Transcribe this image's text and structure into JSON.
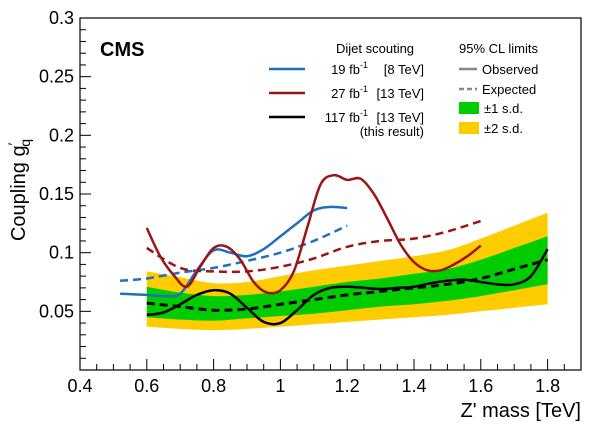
{
  "chart_data": {
    "type": "line",
    "experiment_label": "CMS",
    "xlabel": "Z' mass [TeV]",
    "ylabel_main": "Coupling g",
    "ylabel_sup": "′",
    "ylabel_sub": "q",
    "xlim": [
      0.4,
      1.9
    ],
    "ylim": [
      0.0,
      0.3
    ],
    "x_ticks": [
      0.4,
      0.6,
      0.8,
      1.0,
      1.2,
      1.4,
      1.6,
      1.8
    ],
    "x_tick_labels": [
      "0.4",
      "0.6",
      "0.8",
      "1",
      "1.2",
      "1.4",
      "1.6",
      "1.8"
    ],
    "y_ticks": [
      0.05,
      0.1,
      0.15,
      0.2,
      0.25,
      0.3
    ],
    "y_tick_labels": [
      "0.05",
      "0.1",
      "0.15",
      "0.2",
      "0.25",
      "0.3"
    ],
    "legend_left": {
      "header": "Dijet scouting",
      "entries": [
        {
          "lumi": "19 fb",
          "lumi_sup": "-1",
          "energy": "[8 TeV]",
          "color": "#1f6fc0"
        },
        {
          "lumi": "27 fb",
          "lumi_sup": "-1",
          "energy": "[13 TeV]",
          "color": "#9a1616"
        },
        {
          "lumi": "117 fb",
          "lumi_sup": "-1",
          "energy": "[13 TeV]",
          "color": "#000000"
        }
      ],
      "footer": "(this result)"
    },
    "legend_right": {
      "header": "95% CL limits",
      "entries": [
        {
          "label": "Observed",
          "kind": "solid-line",
          "color": "#888888"
        },
        {
          "label": "Expected",
          "kind": "dashed-line",
          "color": "#888888"
        },
        {
          "label": "±1 s.d.",
          "kind": "box",
          "color": "#00cc00"
        },
        {
          "label": "±2 s.d.",
          "kind": "box",
          "color": "#ffcc00"
        }
      ]
    },
    "series": [
      {
        "key": "band2",
        "kind": "band",
        "color": "#ffcc00",
        "x": [
          0.6,
          0.7,
          0.8,
          0.9,
          1.0,
          1.1,
          1.2,
          1.3,
          1.4,
          1.5,
          1.6,
          1.7,
          1.8
        ],
        "lo": [
          0.037,
          0.035,
          0.034,
          0.035,
          0.037,
          0.039,
          0.041,
          0.043,
          0.045,
          0.047,
          0.05,
          0.053,
          0.056
        ],
        "hi": [
          0.084,
          0.079,
          0.074,
          0.075,
          0.08,
          0.085,
          0.089,
          0.093,
          0.097,
          0.102,
          0.112,
          0.123,
          0.134
        ]
      },
      {
        "key": "band1",
        "kind": "band",
        "color": "#00cc00",
        "x": [
          0.6,
          0.7,
          0.8,
          0.9,
          1.0,
          1.1,
          1.2,
          1.3,
          1.4,
          1.5,
          1.6,
          1.7,
          1.8
        ],
        "lo": [
          0.045,
          0.043,
          0.042,
          0.044,
          0.046,
          0.048,
          0.051,
          0.054,
          0.056,
          0.059,
          0.063,
          0.068,
          0.073
        ],
        "hi": [
          0.071,
          0.066,
          0.063,
          0.064,
          0.067,
          0.071,
          0.075,
          0.078,
          0.082,
          0.086,
          0.094,
          0.104,
          0.114
        ]
      },
      {
        "key": "exp_117",
        "kind": "dashed",
        "color": "#000000",
        "width": 3,
        "x": [
          0.6,
          0.7,
          0.8,
          0.9,
          1.0,
          1.1,
          1.2,
          1.3,
          1.4,
          1.5,
          1.6,
          1.7,
          1.8
        ],
        "y": [
          0.057,
          0.054,
          0.051,
          0.052,
          0.056,
          0.06,
          0.064,
          0.067,
          0.07,
          0.073,
          0.078,
          0.086,
          0.094
        ]
      },
      {
        "key": "exp_19",
        "kind": "dashed",
        "color": "#1f6fc0",
        "width": 2.5,
        "x": [
          0.52,
          0.6,
          0.7,
          0.8,
          0.9,
          1.0,
          1.1,
          1.2
        ],
        "y": [
          0.076,
          0.078,
          0.083,
          0.087,
          0.093,
          0.1,
          0.11,
          0.123
        ]
      },
      {
        "key": "exp_27",
        "kind": "dashed",
        "color": "#9a1616",
        "width": 2.5,
        "x": [
          0.6,
          0.7,
          0.8,
          0.9,
          1.0,
          1.1,
          1.2,
          1.3,
          1.4,
          1.5,
          1.6
        ],
        "y": [
          0.104,
          0.087,
          0.084,
          0.084,
          0.088,
          0.095,
          0.105,
          0.11,
          0.112,
          0.118,
          0.127
        ]
      },
      {
        "key": "obs_19",
        "kind": "solid",
        "color": "#1f6fc0",
        "width": 2.5,
        "x": [
          0.52,
          0.6,
          0.65,
          0.7,
          0.75,
          0.8,
          0.85,
          0.9,
          0.95,
          1.0,
          1.05,
          1.1,
          1.15,
          1.2
        ],
        "y": [
          0.065,
          0.064,
          0.063,
          0.065,
          0.085,
          0.102,
          0.1,
          0.097,
          0.103,
          0.114,
          0.125,
          0.136,
          0.139,
          0.138
        ]
      },
      {
        "key": "obs_27",
        "kind": "solid",
        "color": "#9a1616",
        "width": 2.5,
        "x": [
          0.6,
          0.64,
          0.68,
          0.72,
          0.76,
          0.8,
          0.84,
          0.88,
          0.92,
          0.96,
          1.0,
          1.04,
          1.08,
          1.12,
          1.16,
          1.2,
          1.24,
          1.28,
          1.32,
          1.36,
          1.4,
          1.44,
          1.48,
          1.52,
          1.56,
          1.6
        ],
        "y": [
          0.121,
          0.097,
          0.081,
          0.071,
          0.088,
          0.104,
          0.105,
          0.094,
          0.075,
          0.066,
          0.068,
          0.084,
          0.121,
          0.158,
          0.166,
          0.162,
          0.163,
          0.15,
          0.129,
          0.107,
          0.092,
          0.085,
          0.085,
          0.09,
          0.097,
          0.106
        ]
      },
      {
        "key": "obs_117",
        "kind": "solid",
        "color": "#000000",
        "width": 2.5,
        "x": [
          0.6,
          0.65,
          0.7,
          0.75,
          0.8,
          0.85,
          0.9,
          0.95,
          1.0,
          1.05,
          1.1,
          1.15,
          1.2,
          1.25,
          1.3,
          1.35,
          1.4,
          1.45,
          1.5,
          1.55,
          1.6,
          1.65,
          1.7,
          1.75,
          1.8
        ],
        "y": [
          0.047,
          0.049,
          0.056,
          0.064,
          0.068,
          0.065,
          0.053,
          0.041,
          0.04,
          0.051,
          0.064,
          0.07,
          0.071,
          0.07,
          0.069,
          0.07,
          0.071,
          0.074,
          0.076,
          0.077,
          0.075,
          0.073,
          0.073,
          0.08,
          0.103
        ]
      }
    ]
  }
}
